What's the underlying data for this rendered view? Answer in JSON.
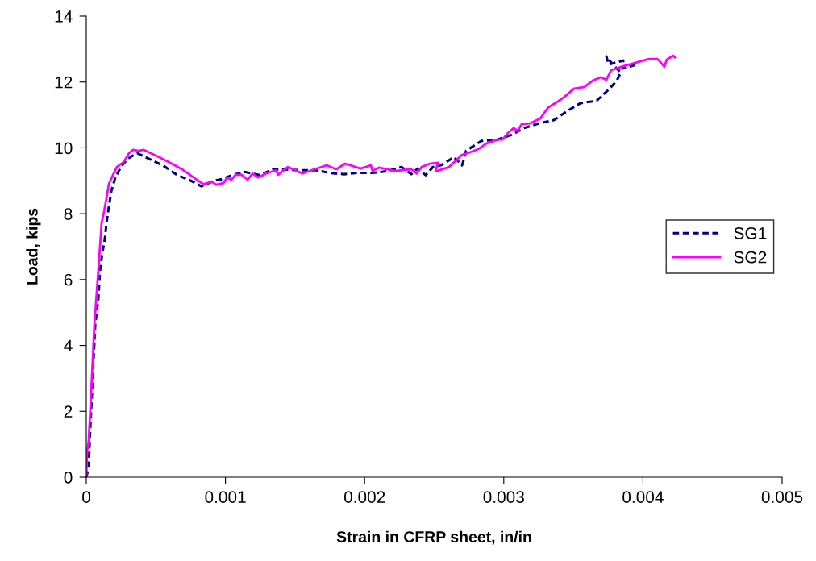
{
  "chart_data": {
    "type": "line",
    "xlabel": "Strain in CFRP sheet, in/in",
    "ylabel": "Load, kips",
    "xlim": [
      0,
      0.005
    ],
    "ylim": [
      0,
      14
    ],
    "xticks": [
      0,
      0.001,
      0.002,
      0.003,
      0.004,
      0.005
    ],
    "yticks": [
      0,
      2,
      4,
      6,
      8,
      10,
      12,
      14
    ],
    "grid": false,
    "legend": "right",
    "marker": "none",
    "series": [
      {
        "name": "SG1",
        "color": "#000080",
        "line_style": "dashed",
        "x": [
          0,
          1.7e-05,
          2.9e-05,
          4.6e-05,
          6.4e-05,
          8.7e-05,
          9.8e-05,
          0.000116,
          0.000133,
          0.000145,
          0.000162,
          0.00018,
          0.000209,
          0.000249,
          0.000295,
          0.000365,
          0.00044,
          0.00055,
          0.000655,
          0.000753,
          0.000828,
          0.000915,
          0.000973,
          0.001049,
          0.001136,
          0.001246,
          0.001338,
          0.001448,
          0.001535,
          0.001651,
          0.001744,
          0.001854,
          0.001947,
          0.002057,
          0.002161,
          0.002265,
          0.002335,
          0.002381,
          0.002439,
          0.002491,
          0.002549,
          0.002642,
          0.0027,
          0.002711,
          0.002729,
          0.002839,
          0.002955,
          0.003059,
          0.003146,
          0.00325,
          0.00336,
          0.003465,
          0.003552,
          0.003667,
          0.003754,
          0.003812,
          0.003841,
          0.003783,
          0.003737,
          0.003754,
          0.003859,
          0.003853,
          0.003957
        ],
        "values": [
          0,
          0.29,
          1.52,
          2.99,
          4.63,
          5.43,
          6.24,
          6.83,
          7.22,
          7.71,
          8.2,
          8.69,
          9.1,
          9.42,
          9.66,
          9.84,
          9.69,
          9.47,
          9.17,
          9.0,
          8.83,
          9.0,
          9.05,
          9.17,
          9.27,
          9.17,
          9.34,
          9.34,
          9.32,
          9.32,
          9.24,
          9.2,
          9.24,
          9.24,
          9.29,
          9.42,
          9.2,
          9.37,
          9.17,
          9.42,
          9.47,
          9.72,
          9.47,
          9.62,
          9.91,
          10.21,
          10.25,
          10.4,
          10.6,
          10.74,
          10.84,
          11.14,
          11.36,
          11.43,
          11.77,
          12.04,
          12.29,
          12.53,
          12.78,
          12.53,
          12.65,
          12.41,
          12.53
        ]
      },
      {
        "name": "SG2",
        "color": "#ff00ff",
        "line_style": "solid",
        "x": [
          0,
          6e-06,
          1.7e-05,
          3.5e-05,
          4.6e-05,
          5.8e-05,
          7.5e-05,
          9.3e-05,
          0.00011,
          0.000127,
          0.000151,
          0.000162,
          0.000191,
          0.00022,
          0.000267,
          0.000307,
          0.000336,
          0.000377,
          0.000411,
          0.000463,
          0.000521,
          0.000614,
          0.000695,
          0.000771,
          0.00084,
          0.000904,
          0.000933,
          0.000985,
          0.001014,
          0.001043,
          0.001072,
          0.001118,
          0.001159,
          0.001194,
          0.001234,
          0.001292,
          0.001362,
          0.001379,
          0.001448,
          0.001553,
          0.00164,
          0.001727,
          0.001796,
          0.00186,
          0.00197,
          0.002045,
          0.002057,
          0.002103,
          0.002219,
          0.002335,
          0.002375,
          0.00241,
          0.002468,
          0.002526,
          0.002509,
          0.002607,
          0.0027,
          0.00274,
          0.002816,
          0.002874,
          0.002955,
          0.00299,
          0.00303,
          0.003071,
          0.0031,
          0.003129,
          0.003187,
          0.003262,
          0.00332,
          0.003378,
          0.003436,
          0.003505,
          0.00358,
          0.003638,
          0.003696,
          0.003737,
          0.003772,
          0.003859,
          0.004044,
          0.004102,
          0.004131,
          0.004154,
          0.004171,
          0.004218,
          0.004229
        ],
        "values": [
          0,
          0.78,
          1.1,
          2.57,
          3.55,
          4.63,
          5.6,
          6.66,
          7.71,
          8.05,
          8.61,
          8.9,
          9.17,
          9.42,
          9.56,
          9.84,
          9.94,
          9.91,
          9.94,
          9.84,
          9.72,
          9.52,
          9.33,
          9.1,
          8.9,
          8.97,
          8.88,
          8.93,
          9.1,
          9.03,
          9.18,
          9.18,
          9.03,
          9.22,
          9.1,
          9.22,
          9.32,
          9.18,
          9.42,
          9.22,
          9.35,
          9.47,
          9.35,
          9.52,
          9.37,
          9.47,
          9.3,
          9.4,
          9.3,
          9.35,
          9.22,
          9.42,
          9.52,
          9.55,
          9.28,
          9.42,
          9.79,
          9.84,
          9.96,
          10.13,
          10.25,
          10.25,
          10.45,
          10.6,
          10.52,
          10.72,
          10.74,
          10.89,
          11.23,
          11.38,
          11.55,
          11.8,
          11.85,
          12.04,
          12.14,
          12.07,
          12.36,
          12.48,
          12.7,
          12.7,
          12.58,
          12.46,
          12.68,
          12.8,
          12.75
        ]
      }
    ]
  }
}
